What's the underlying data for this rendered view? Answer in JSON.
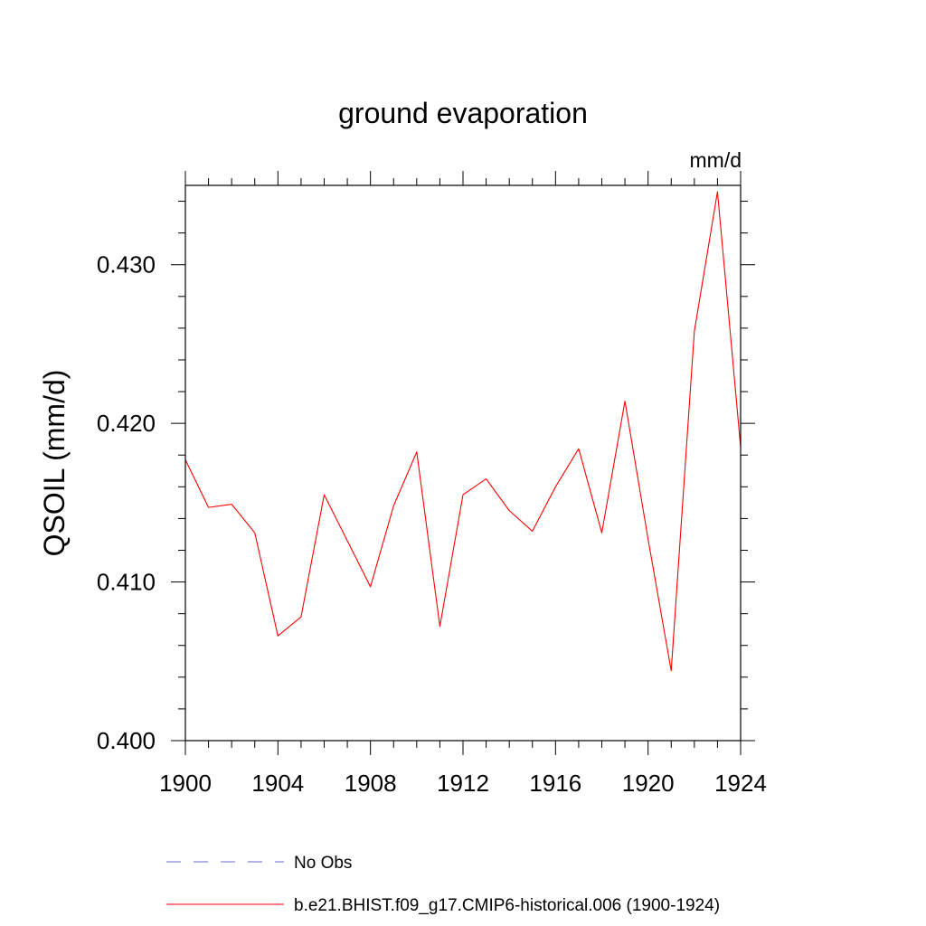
{
  "chart_data": {
    "type": "line",
    "title": "ground evaporation",
    "units_label": "mm/d",
    "ylabel": "QSOIL  (mm/d)",
    "xlabel": "",
    "xlim": [
      1900,
      1924
    ],
    "ylim": [
      0.4,
      0.435
    ],
    "x_ticks": [
      1900,
      1904,
      1908,
      1912,
      1916,
      1920,
      1924
    ],
    "x_tick_labels": [
      "1900",
      "1904",
      "1908",
      "1912",
      "1916",
      "1920",
      "1924"
    ],
    "y_ticks": [
      0.4,
      0.41,
      0.42,
      0.43
    ],
    "y_tick_labels": [
      "0.400",
      "0.410",
      "0.420",
      "0.430"
    ],
    "grid": false,
    "series": [
      {
        "name": "b.e21.BHIST.f09_g17.CMIP6-historical.006 (1900-1924)",
        "color": "#ff0000",
        "style": "solid",
        "x": [
          1900,
          1901,
          1902,
          1903,
          1904,
          1905,
          1906,
          1907,
          1908,
          1909,
          1910,
          1911,
          1912,
          1913,
          1914,
          1915,
          1916,
          1917,
          1918,
          1919,
          1920,
          1921,
          1922,
          1923,
          1924
        ],
        "values": [
          0.4177,
          0.4147,
          0.4149,
          0.4131,
          0.4066,
          0.4078,
          0.4155,
          0.4126,
          0.4097,
          0.4148,
          0.4182,
          0.4072,
          0.4155,
          0.4165,
          0.4145,
          0.4132,
          0.416,
          0.4184,
          0.4131,
          0.4214,
          0.4127,
          0.4044,
          0.4258,
          0.4346,
          0.4185
        ]
      }
    ],
    "legend": {
      "placement": "bottom",
      "entries": [
        {
          "label": "No Obs",
          "color": "#6a6acd",
          "style": "dashed"
        },
        {
          "label": "b.e21.BHIST.f09_g17.CMIP6-historical.006 (1900-1924)",
          "color": "#ff0000",
          "style": "solid"
        }
      ]
    }
  }
}
